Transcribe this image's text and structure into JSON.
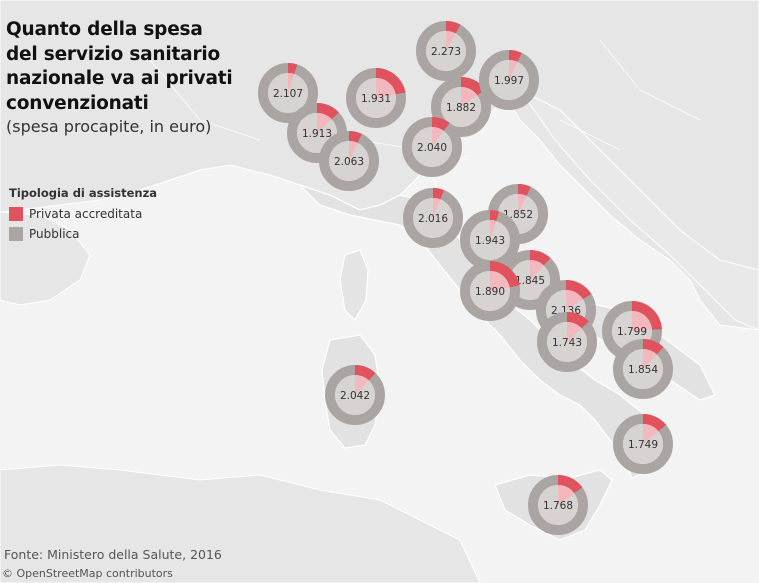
{
  "title_lines": [
    "Quanto della spesa",
    "del servizio sanitario",
    "nazionale va ai privati",
    "convenzionati"
  ],
  "subtitle": "(spesa procapite, in euro)",
  "legend": {
    "title": "Tipologia di assistenza",
    "items": [
      {
        "label": "Privata accreditata",
        "color": "#e0525d"
      },
      {
        "label": "Pubblica",
        "color": "#aaa5a2"
      }
    ]
  },
  "source": "Fonte: Ministero della Salute, 2016",
  "attribution": "© OpenStreetMap contributors",
  "colors": {
    "privata": "#e0525d",
    "privata_light": "#f2b8bd",
    "pubblica": "#aaa5a2",
    "center": "#d7d3d1",
    "land": "#e8e8e8",
    "sea": "#f4f4f4",
    "border": "#ffffff"
  },
  "chart_data": {
    "type": "map-donut",
    "series": [
      "Privata accreditata",
      "Pubblica"
    ],
    "regions": [
      {
        "label": "2.273",
        "privata_share": 0.08
      },
      {
        "label": "2.107",
        "privata_share": 0.05
      },
      {
        "label": "1.931",
        "privata_share": 0.22
      },
      {
        "label": "1.882",
        "privata_share": 0.15
      },
      {
        "label": "1.997",
        "privata_share": 0.07
      },
      {
        "label": "1.913",
        "privata_share": 0.13
      },
      {
        "label": "2.063",
        "privata_share": 0.07
      },
      {
        "label": "2.040",
        "privata_share": 0.1
      },
      {
        "label": "2.016",
        "privata_share": 0.06
      },
      {
        "label": "1.852",
        "privata_share": 0.07
      },
      {
        "label": "1.943",
        "privata_share": 0.05
      },
      {
        "label": "1.845",
        "privata_share": 0.12
      },
      {
        "label": "1.890",
        "privata_share": 0.22
      },
      {
        "label": "2.136",
        "privata_share": 0.16
      },
      {
        "label": "1.743",
        "privata_share": 0.13
      },
      {
        "label": "1.799",
        "privata_share": 0.24
      },
      {
        "label": "1.854",
        "privata_share": 0.12
      },
      {
        "label": "2.042",
        "privata_share": 0.12
      },
      {
        "label": "1.749",
        "privata_share": 0.14
      },
      {
        "label": "1.768",
        "privata_share": 0.15
      }
    ]
  }
}
